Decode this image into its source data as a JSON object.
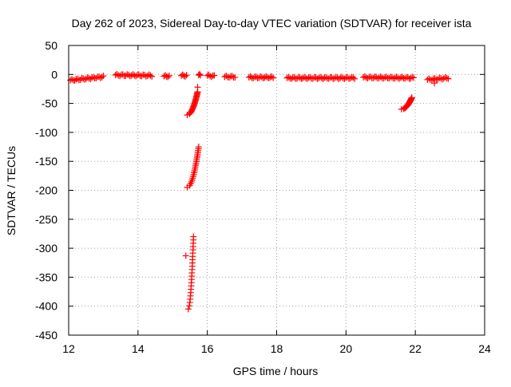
{
  "chart_data": {
    "type": "scatter",
    "title": "Day 262 of 2023, Sidereal Day-to-day VTEC variation (SDTVAR) for receiver ista",
    "xlabel": "GPS time / hours",
    "ylabel": "SDTVAR / TECUs",
    "xlim": [
      12,
      24
    ],
    "ylim": [
      -450,
      50
    ],
    "xticks": [
      12,
      14,
      16,
      18,
      20,
      22,
      24
    ],
    "yticks": [
      50,
      0,
      -50,
      -100,
      -150,
      -200,
      -250,
      -300,
      -350,
      -400,
      -450
    ],
    "grid": true,
    "marker": "+",
    "colors": {
      "series": "#ff0000",
      "grid": "#a0a0a0",
      "axis": "#000000"
    },
    "series": [
      {
        "name": "SDTVAR",
        "segments": [
          {
            "x_start": 12.05,
            "x_end": 13.0,
            "y_start": -10,
            "y_end": -4
          },
          {
            "x_start": 13.35,
            "x_end": 14.4,
            "y_start": -1,
            "y_end": -2
          },
          {
            "x_start": 14.75,
            "x_end": 14.9,
            "y_start": -3,
            "y_end": -3
          },
          {
            "x_start": 15.25,
            "x_end": 15.4,
            "y_start": -2,
            "y_end": -2
          },
          {
            "x_start": 15.75,
            "x_end": 15.8,
            "y_start": -1,
            "y_end": -1
          },
          {
            "x_start": 16.0,
            "x_end": 16.2,
            "y_start": -2,
            "y_end": -3
          },
          {
            "x_start": 16.5,
            "x_end": 16.8,
            "y_start": -4,
            "y_end": -4
          },
          {
            "x_start": 17.2,
            "x_end": 17.9,
            "y_start": -5,
            "y_end": -5
          },
          {
            "x_start": 18.3,
            "x_end": 20.25,
            "y_start": -6,
            "y_end": -6
          },
          {
            "x_start": 20.5,
            "x_end": 21.95,
            "y_start": -5,
            "y_end": -6
          },
          {
            "x_start": 22.35,
            "x_end": 22.95,
            "y_start": -9,
            "y_end": -6
          }
        ],
        "arcs": [
          {
            "x_start": 15.42,
            "x_end": 15.72,
            "y_start": -70,
            "y_end": -30
          },
          {
            "x_start": 15.42,
            "x_end": 15.75,
            "y_start": -195,
            "y_end": -125
          },
          {
            "x_start": 15.45,
            "x_end": 15.6,
            "y_start": -405,
            "y_end": -280
          },
          {
            "x_start": 21.6,
            "x_end": 21.9,
            "y_start": -60,
            "y_end": -40
          }
        ],
        "points": [
          {
            "x": 15.72,
            "y": -22
          },
          {
            "x": 15.38,
            "y": -313
          },
          {
            "x": 22.55,
            "y": -15
          }
        ]
      }
    ]
  }
}
